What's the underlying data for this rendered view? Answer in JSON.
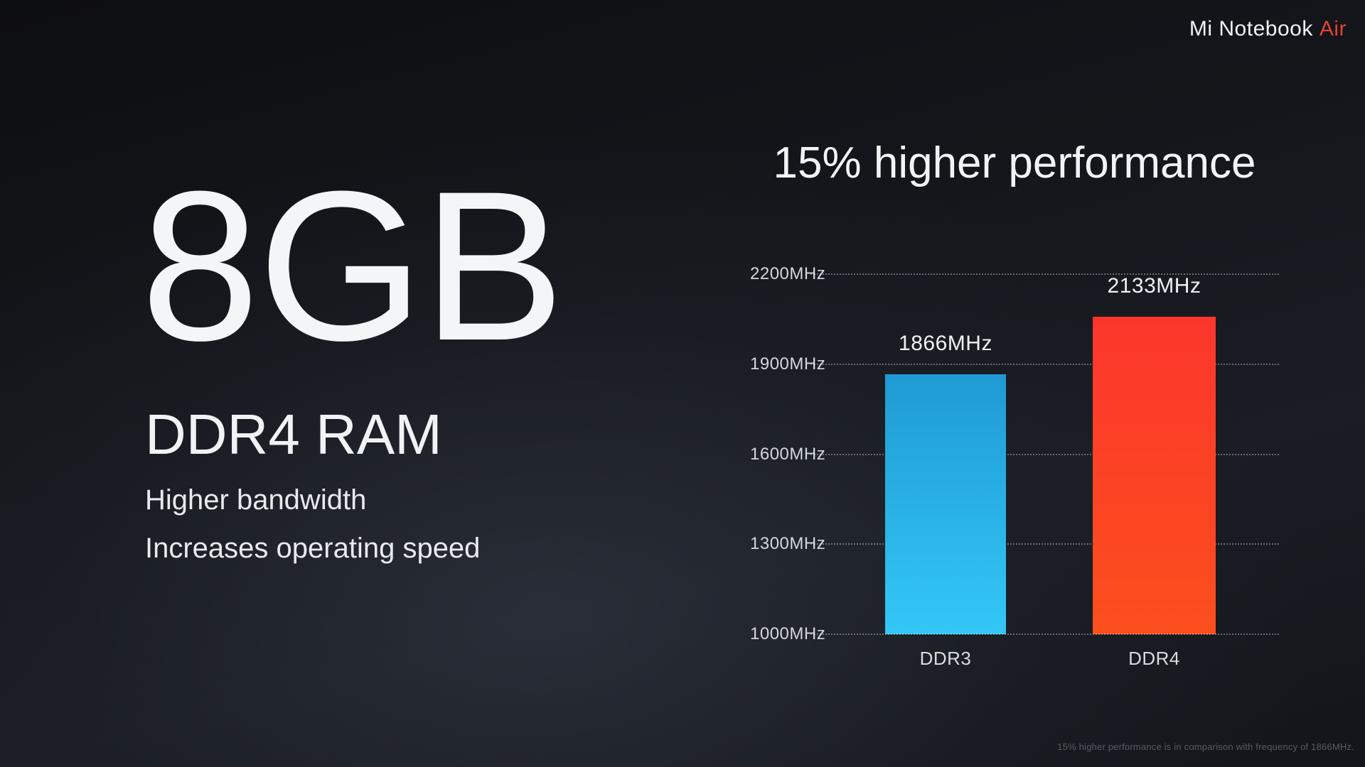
{
  "brand": {
    "name": "Mi Notebook",
    "suffix": "Air"
  },
  "left_panel": {
    "headline": "8GB",
    "subheadline": "DDR4 RAM",
    "body_lines": [
      "Higher bandwidth",
      "Increases operating speed"
    ]
  },
  "chart_data": {
    "type": "bar",
    "title": "15% higher performance",
    "categories": [
      "DDR3",
      "DDR4"
    ],
    "values": [
      1866,
      2133
    ],
    "value_labels": [
      "1866MHz",
      "2133MHz"
    ],
    "yticks": [
      "2200MHz",
      "1900MHz",
      "1600MHz",
      "1300MHz",
      "1000MHz"
    ],
    "ylim": [
      1000,
      2200
    ],
    "xlabel": "",
    "ylabel": "",
    "grid": "horizontal-dotted",
    "legend": "none",
    "series": [
      {
        "name": "DDR3",
        "value": 1866,
        "color_top": "#1f9ad5",
        "color_bottom": "#33c7f6"
      },
      {
        "name": "DDR4",
        "value": 2133,
        "color_top": "#fc362c",
        "color_bottom": "#fc4f1d"
      }
    ]
  },
  "footnote": "15% higher performance is in comparison with frequency of 1866MHz.",
  "colors": {
    "background_dark": "#0d0e11",
    "background_light": "#232830",
    "accent_red": "#e2432f",
    "text_primary": "#f2f3f5",
    "text_muted": "#575c64"
  }
}
